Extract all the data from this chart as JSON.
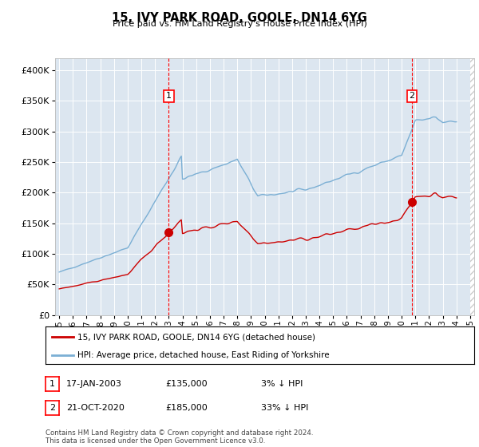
{
  "title": "15, IVY PARK ROAD, GOOLE, DN14 6YG",
  "subtitle": "Price paid vs. HM Land Registry's House Price Index (HPI)",
  "plot_bg_color": "#dce6f0",
  "hpi_color": "#7bafd4",
  "price_color": "#cc0000",
  "transaction1": {
    "date": "17-JAN-2003",
    "price": 135000,
    "label": "1",
    "pct": "3% ↓ HPI",
    "x_year": 2003.04
  },
  "transaction2": {
    "date": "21-OCT-2020",
    "price": 185000,
    "label": "2",
    "pct": "33% ↓ HPI",
    "x_year": 2020.79
  },
  "legend_line1": "15, IVY PARK ROAD, GOOLE, DN14 6YG (detached house)",
  "legend_line2": "HPI: Average price, detached house, East Riding of Yorkshire",
  "footer": "Contains HM Land Registry data © Crown copyright and database right 2024.\nThis data is licensed under the Open Government Licence v3.0.",
  "ylim": [
    0,
    420000
  ],
  "yticks": [
    0,
    50000,
    100000,
    150000,
    200000,
    250000,
    300000,
    350000,
    400000
  ],
  "xlim": [
    1994.7,
    2025.3
  ],
  "xtick_years": [
    1995,
    1996,
    1997,
    1998,
    1999,
    2000,
    2001,
    2002,
    2003,
    2004,
    2005,
    2006,
    2007,
    2008,
    2009,
    2010,
    2011,
    2012,
    2013,
    2014,
    2015,
    2016,
    2017,
    2018,
    2019,
    2020,
    2021,
    2022,
    2023,
    2024,
    2025
  ]
}
